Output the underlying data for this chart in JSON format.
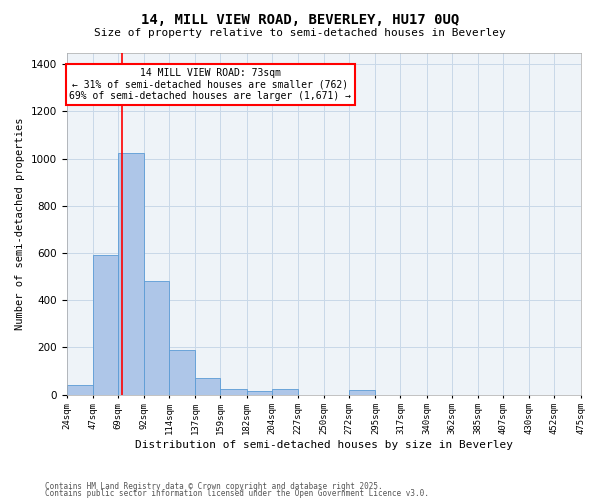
{
  "title1": "14, MILL VIEW ROAD, BEVERLEY, HU17 0UQ",
  "title2": "Size of property relative to semi-detached houses in Beverley",
  "xlabel": "Distribution of semi-detached houses by size in Beverley",
  "ylabel": "Number of semi-detached properties",
  "footnote1": "Contains HM Land Registry data © Crown copyright and database right 2025.",
  "footnote2": "Contains public sector information licensed under the Open Government Licence v3.0.",
  "annotation_title": "14 MILL VIEW ROAD: 73sqm",
  "annotation_line1": "← 31% of semi-detached houses are smaller (762)",
  "annotation_line2": "69% of semi-detached houses are larger (1,671) →",
  "bar_edges": [
    24,
    47,
    69,
    92,
    114,
    137,
    159,
    182,
    204,
    227,
    250,
    272,
    295,
    317,
    340,
    362,
    385,
    407,
    430,
    452,
    475
  ],
  "bar_heights": [
    40,
    590,
    1025,
    480,
    190,
    70,
    22,
    15,
    22,
    0,
    0,
    18,
    0,
    0,
    0,
    0,
    0,
    0,
    0,
    0
  ],
  "bar_color": "#aec6e8",
  "bar_edgecolor": "#5b9bd5",
  "grid_color": "#c8d8e8",
  "bg_color": "#eef3f8",
  "red_line_x": 73,
  "ylim": [
    0,
    1450
  ],
  "tick_labels": [
    "24sqm",
    "47sqm",
    "69sqm",
    "92sqm",
    "114sqm",
    "137sqm",
    "159sqm",
    "182sqm",
    "204sqm",
    "227sqm",
    "250sqm",
    "272sqm",
    "295sqm",
    "317sqm",
    "340sqm",
    "362sqm",
    "385sqm",
    "407sqm",
    "430sqm",
    "452sqm",
    "475sqm"
  ],
  "title1_fontsize": 10,
  "title2_fontsize": 8,
  "xlabel_fontsize": 8,
  "ylabel_fontsize": 7.5,
  "tick_fontsize": 6.5,
  "ytick_fontsize": 7.5,
  "footnote_fontsize": 5.5,
  "ann_fontsize": 7
}
